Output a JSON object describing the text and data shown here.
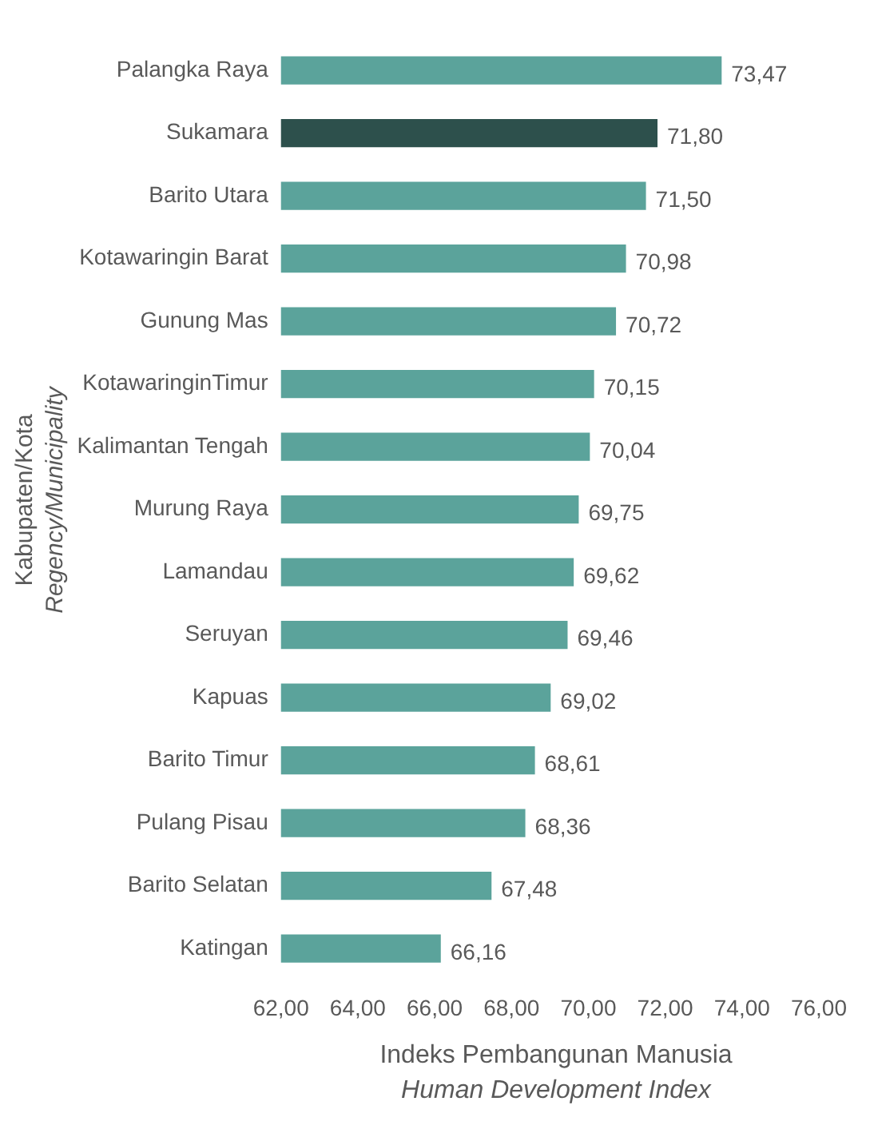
{
  "chart_data": {
    "type": "bar",
    "orientation": "horizontal",
    "ylabel": "Kabupaten/Kota\nRegency/Municipality",
    "xlabel": "Indeks Pembangunan Manusia\nHuman Development Index",
    "categories": [
      "Palangka Raya",
      "Sukamara",
      "Barito Utara",
      "Kotawaringin Barat",
      "Gunung Mas",
      "KotawaringinTimur",
      "Kalimantan Tengah",
      "Murung Raya",
      "Lamandau",
      "Seruyan",
      "Kapuas",
      "Barito Timur",
      "Pulang Pisau",
      "Barito Selatan",
      "Katingan"
    ],
    "values": [
      73.47,
      71.8,
      71.5,
      70.98,
      70.72,
      70.15,
      70.04,
      69.75,
      69.62,
      69.46,
      69.02,
      68.61,
      68.36,
      67.48,
      66.16
    ],
    "value_labels": [
      "73,47",
      "71,80",
      "71,50",
      "70,98",
      "70,72",
      "70,15",
      "70,04",
      "69,75",
      "69,62",
      "69,46",
      "69,02",
      "68,61",
      "68,36",
      "67,48",
      "66,16"
    ],
    "colors": [
      "#5ba39b",
      "#2d504c",
      "#5ba39b",
      "#5ba39b",
      "#5ba39b",
      "#5ba39b",
      "#5ba39b",
      "#5ba39b",
      "#5ba39b",
      "#5ba39b",
      "#5ba39b",
      "#5ba39b",
      "#5ba39b",
      "#5ba39b",
      "#5ba39b"
    ],
    "xlim": [
      62,
      76
    ],
    "xticks": [
      {
        "value": 62,
        "label": "62,00"
      },
      {
        "value": 64,
        "label": "64,00"
      },
      {
        "value": 66,
        "label": "66,00"
      },
      {
        "value": 68,
        "label": "68,00"
      },
      {
        "value": 70,
        "label": "70,00"
      },
      {
        "value": 72,
        "label": "72,00"
      },
      {
        "value": 74,
        "label": "74,00"
      },
      {
        "value": 76,
        "label": "76,00"
      }
    ],
    "grid": false,
    "legend": false
  }
}
